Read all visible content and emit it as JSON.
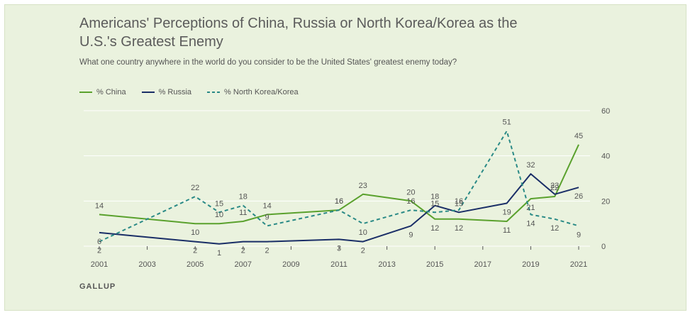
{
  "chart_data": {
    "type": "line",
    "title": "Americans' Perceptions of China, Russia or North Korea/Korea as the U.S.'s Greatest Enemy",
    "subtitle": "What one country anywhere in the world do you consider to be the United States' greatest enemy today?",
    "source": "GALLUP",
    "xlabel": "",
    "ylabel": "",
    "ylim": [
      0,
      60
    ],
    "yticks": [
      "0",
      "20",
      "40",
      "60"
    ],
    "xticks": [
      "2001",
      "2003",
      "2005",
      "2007",
      "2009",
      "2011",
      "2013",
      "2015",
      "2017",
      "2019",
      "2021"
    ],
    "legend_position": "top-left",
    "series": [
      {
        "name": "% China",
        "color": "#5aa12d",
        "style": "solid",
        "x": [
          2001,
          2005,
          2006,
          2007,
          2008,
          2011,
          2012,
          2014,
          2015,
          2016,
          2018,
          2019,
          2020,
          2021
        ],
        "values": [
          14,
          10,
          10,
          11,
          14,
          16,
          23,
          20,
          12,
          12,
          11,
          21,
          22,
          45
        ]
      },
      {
        "name": "% Russia",
        "color": "#1a2e67",
        "style": "solid",
        "x": [
          2001,
          2005,
          2006,
          2007,
          2008,
          2011,
          2012,
          2014,
          2015,
          2016,
          2018,
          2019,
          2020,
          2021
        ],
        "values": [
          6,
          2,
          1,
          2,
          2,
          3,
          2,
          9,
          18,
          15,
          19,
          32,
          23,
          26
        ]
      },
      {
        "name": "% North Korea/Korea",
        "color": "#2a8a86",
        "style": "dashed",
        "x": [
          2001,
          2005,
          2006,
          2007,
          2008,
          2011,
          2012,
          2014,
          2015,
          2016,
          2018,
          2019,
          2020,
          2021
        ],
        "values": [
          2,
          22,
          15,
          18,
          9,
          16,
          10,
          16,
          15,
          16,
          51,
          14,
          12,
          9
        ]
      }
    ]
  }
}
